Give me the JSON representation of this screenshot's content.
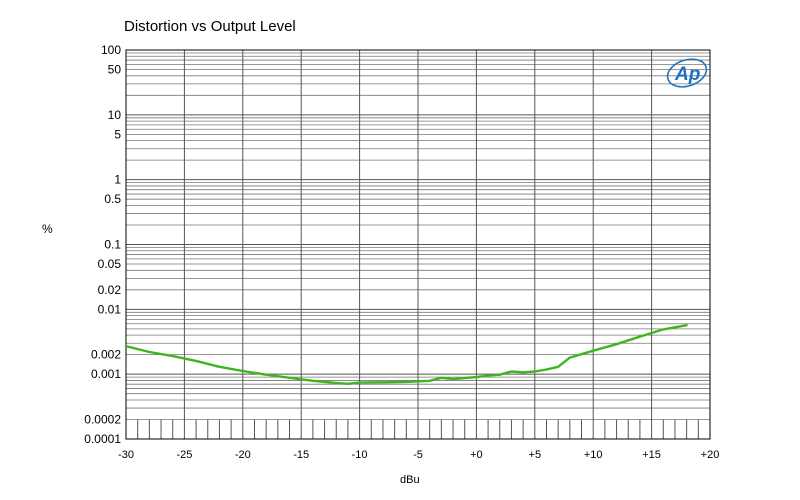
{
  "chart_data": {
    "type": "line",
    "title": "Distortion vs Output Level",
    "xlabel": "dBu",
    "ylabel": "%",
    "xlim": [
      -30,
      20
    ],
    "ylim": [
      0.0001,
      100
    ],
    "y_scale": "log",
    "grid": true,
    "x_ticks": [
      {
        "value": -30,
        "label": "-30"
      },
      {
        "value": -25,
        "label": "-25"
      },
      {
        "value": -20,
        "label": "-20"
      },
      {
        "value": -15,
        "label": "-15"
      },
      {
        "value": -10,
        "label": "-10"
      },
      {
        "value": -5,
        "label": "-5"
      },
      {
        "value": 0,
        "label": "+0"
      },
      {
        "value": 5,
        "label": "+5"
      },
      {
        "value": 10,
        "label": "+10"
      },
      {
        "value": 15,
        "label": "+15"
      },
      {
        "value": 20,
        "label": "+20"
      }
    ],
    "y_ticks": [
      {
        "value": 100,
        "label": "100"
      },
      {
        "value": 50,
        "label": "50"
      },
      {
        "value": 10,
        "label": "10"
      },
      {
        "value": 5,
        "label": "5"
      },
      {
        "value": 1,
        "label": "1"
      },
      {
        "value": 0.5,
        "label": "0.5"
      },
      {
        "value": 0.1,
        "label": "0.1"
      },
      {
        "value": 0.05,
        "label": "0.05"
      },
      {
        "value": 0.02,
        "label": "0.02"
      },
      {
        "value": 0.01,
        "label": "0.01"
      },
      {
        "value": 0.002,
        "label": "0.002"
      },
      {
        "value": 0.001,
        "label": "0.001"
      },
      {
        "value": 0.0002,
        "label": "0.0002"
      },
      {
        "value": 0.0001,
        "label": "0.0001"
      }
    ],
    "series": [
      {
        "color": "#3cb521",
        "x": [
          -30,
          -28,
          -26,
          -24,
          -22,
          -20,
          -18,
          -16,
          -14,
          -12,
          -11,
          -10,
          -8,
          -6,
          -4,
          -3,
          -2,
          -1,
          0,
          1,
          2,
          3,
          4,
          5,
          6,
          7,
          8,
          10,
          12,
          14,
          16,
          18
        ],
        "y": [
          0.0027,
          0.0022,
          0.0019,
          0.0016,
          0.0013,
          0.00112,
          0.00098,
          0.00088,
          0.00079,
          0.00073,
          0.00071,
          0.00074,
          0.00075,
          0.00076,
          0.00079,
          0.00088,
          0.00084,
          0.00087,
          0.0009,
          0.00095,
          0.00098,
          0.0011,
          0.00107,
          0.0011,
          0.00118,
          0.0013,
          0.0018,
          0.0023,
          0.0029,
          0.0038,
          0.0049,
          0.0057
        ]
      }
    ]
  },
  "logo": {
    "text": "Ap",
    "color": "#1e73be"
  }
}
